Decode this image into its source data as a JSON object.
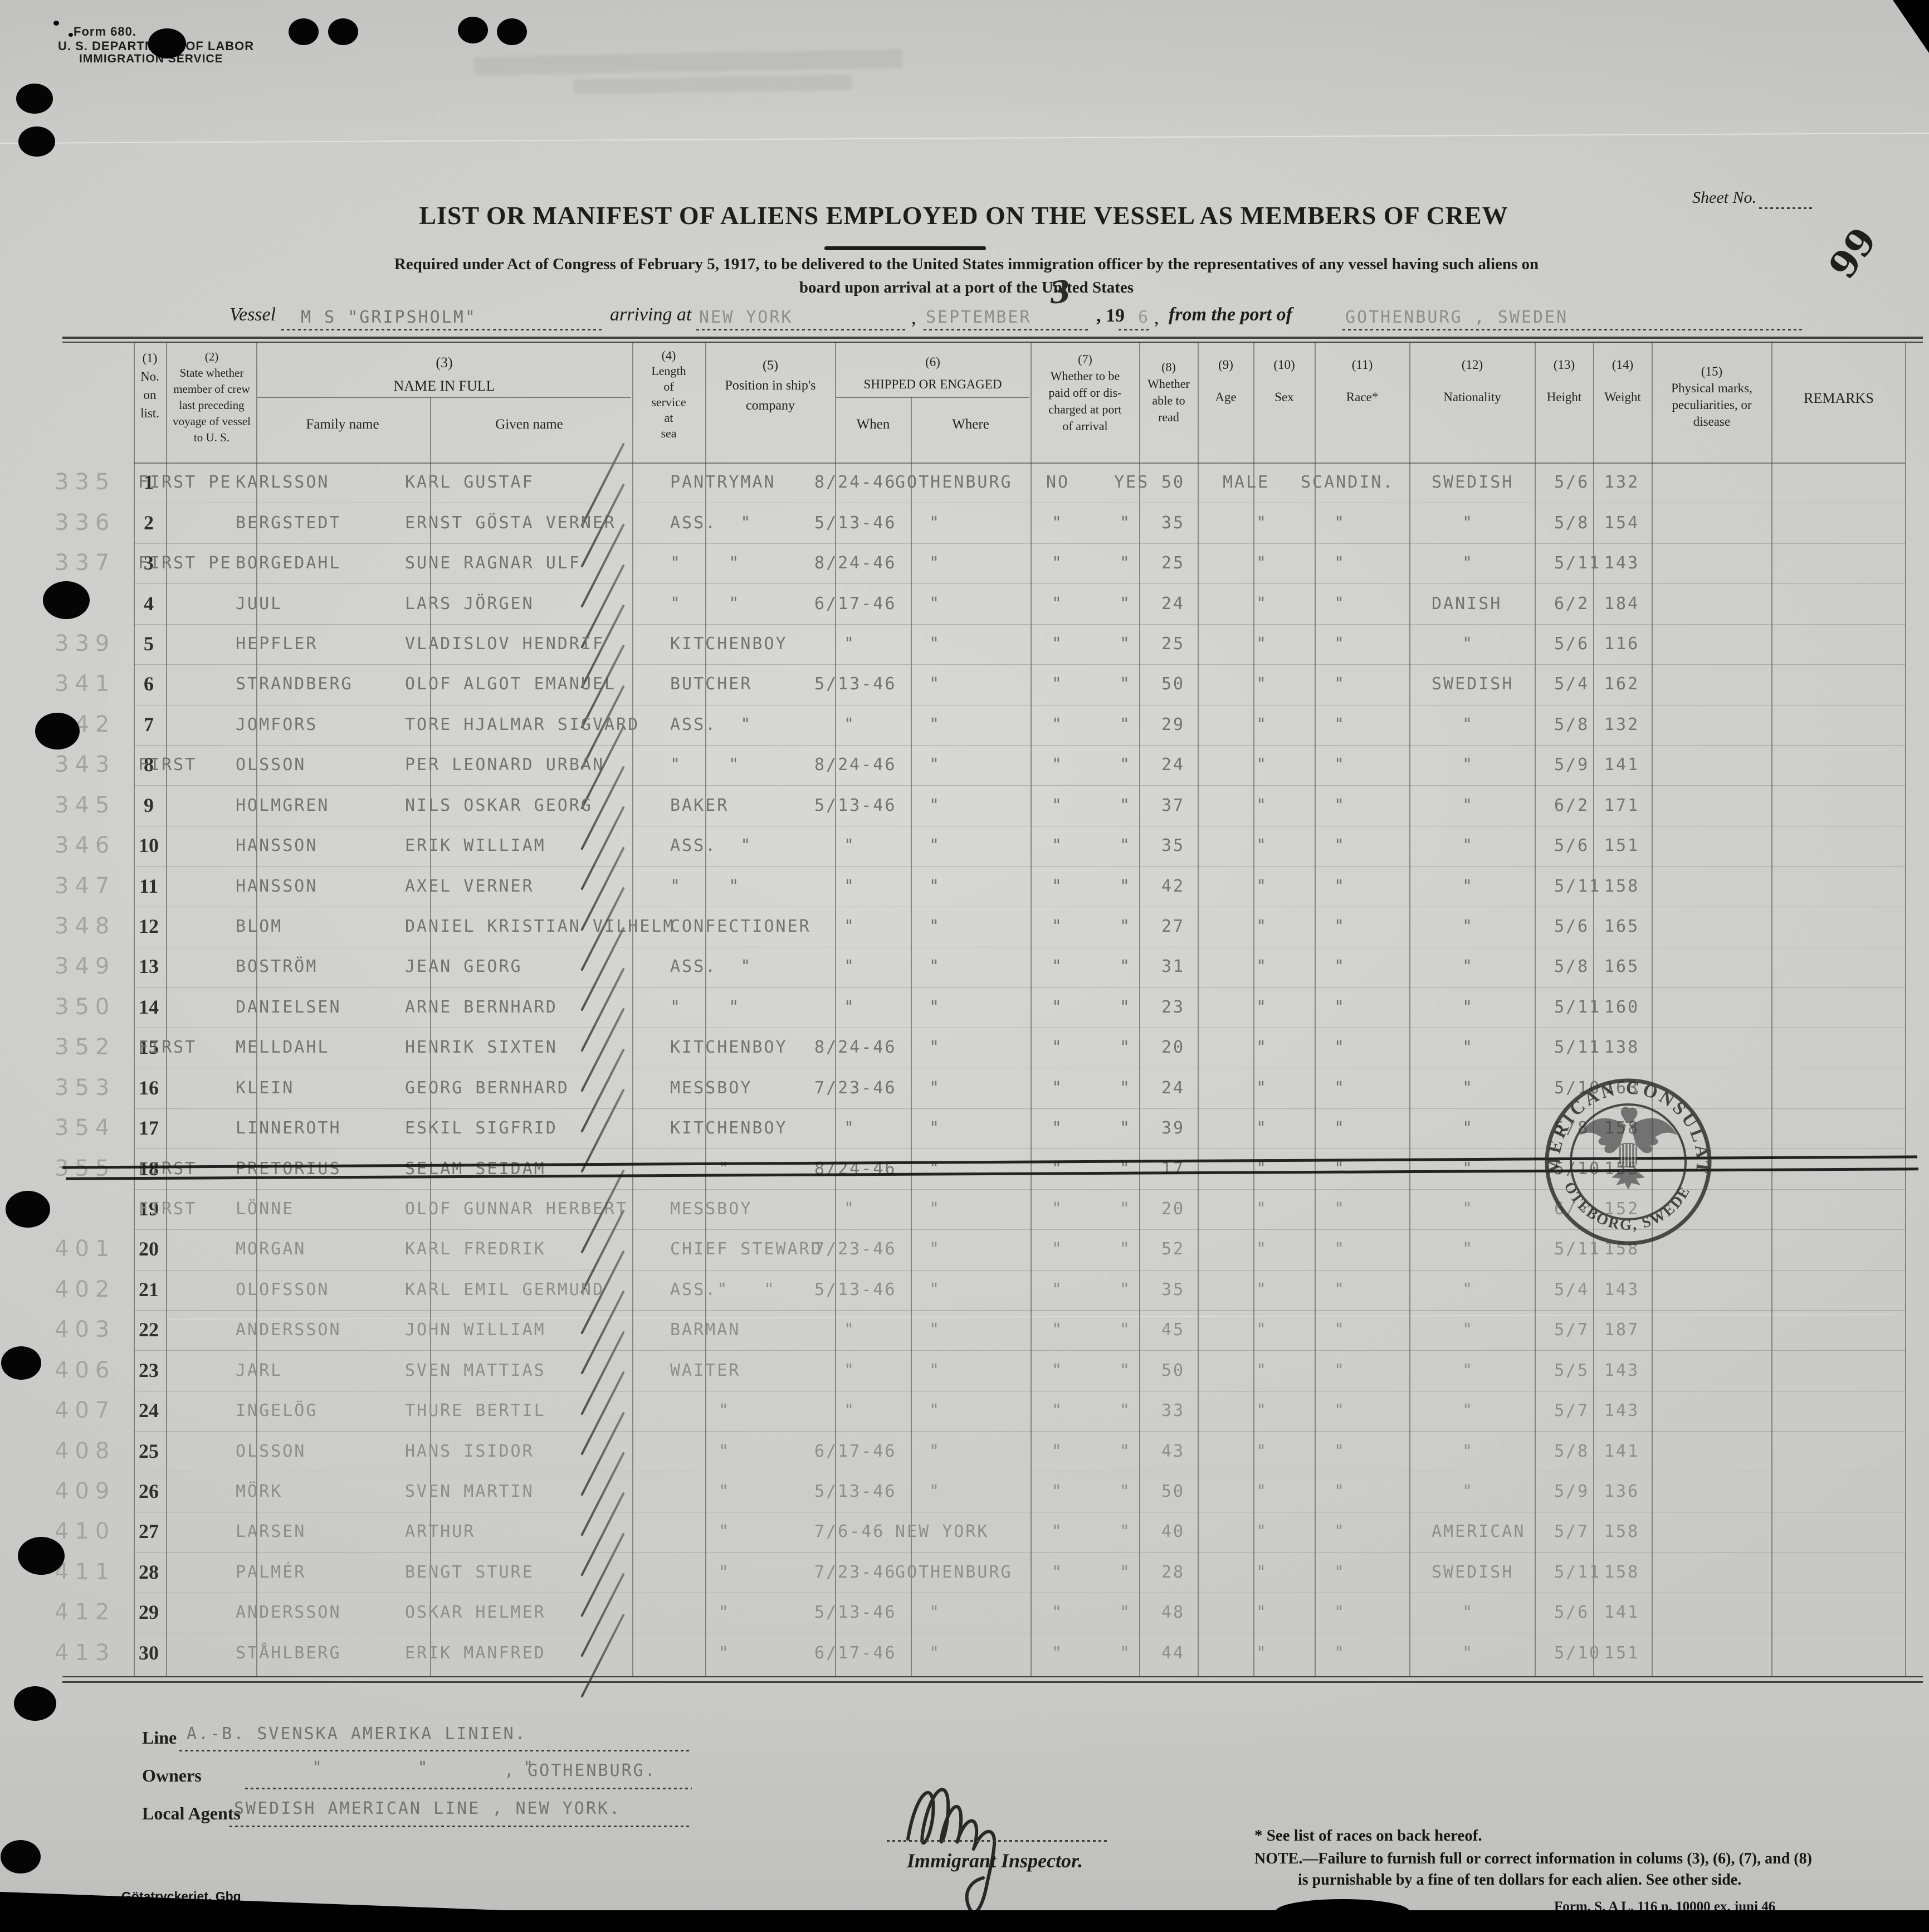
{
  "page_colors": {
    "paper": "#d3d3d1",
    "printed_ink": "#1d1d1d",
    "typed_ink": "#737373",
    "pencil": "#a3a3a3",
    "stamp_ink": "#2b2b2b"
  },
  "header": {
    "form_no": "Form 680.",
    "agency_line1": "U. S. DEPARTMENT OF LABOR",
    "agency_line2": "IMMIGRATION SERVICE",
    "sheet_label": "Sheet No.",
    "sheet_number": "99",
    "title": "LIST OR MANIFEST OF ALIENS EMPLOYED ON THE VESSEL AS MEMBERS OF CREW",
    "subtitle1": "Required under Act of Congress of February 5, 1917, to be delivered to the United States immigration officer by the representatives of any vessel having such aliens on",
    "subtitle2": "board upon arrival at a port of the United States",
    "vessel_label": "Vessel",
    "vessel_name": "M S \"GRIPSHOLM\"",
    "arriving_label": "arriving at",
    "arrival_port": "NEW YORK",
    "arrival_month": "SEPTEMBER",
    "arrival_day": "3",
    "year_printed": ", 19",
    "year_typed": "6",
    "comma": ",",
    "from_label": "from the port of",
    "departure_port": "GOTHENBURG , SWEDEN"
  },
  "table": {
    "header_cols": [
      {
        "id": "c1",
        "lines": [
          "(1)",
          "No.",
          "on",
          "list."
        ]
      },
      {
        "id": "c2",
        "lines": [
          "(2)",
          "State whether",
          "member of crew",
          "last preceding",
          "voyage of vessel",
          "to U. S."
        ]
      },
      {
        "id": "c3",
        "lines": [
          "(3)",
          "NAME IN FULL"
        ]
      },
      {
        "id": "c3a",
        "lines": [
          "Family name"
        ]
      },
      {
        "id": "c3b",
        "lines": [
          "Given name"
        ]
      },
      {
        "id": "c4",
        "lines": [
          "(4)",
          "Length",
          "of",
          "service",
          "at",
          "sea"
        ]
      },
      {
        "id": "c5",
        "lines": [
          "(5)",
          "Position in ship's",
          "company"
        ]
      },
      {
        "id": "c6",
        "lines": [
          "(6)",
          "SHIPPED OR ENGAGED"
        ]
      },
      {
        "id": "c6a",
        "lines": [
          "When"
        ]
      },
      {
        "id": "c6b",
        "lines": [
          "Where"
        ]
      },
      {
        "id": "c7",
        "lines": [
          "(7)",
          "Whether to be",
          "paid off or dis-",
          "charged at port",
          "of arrival"
        ]
      },
      {
        "id": "c8",
        "lines": [
          "(8)",
          "Whether",
          "able to",
          "read"
        ]
      },
      {
        "id": "c9",
        "lines": [
          "(9)",
          "Age"
        ]
      },
      {
        "id": "c10",
        "lines": [
          "(10)",
          "Sex"
        ]
      },
      {
        "id": "c11",
        "lines": [
          "(11)",
          "Race*"
        ]
      },
      {
        "id": "c12",
        "lines": [
          "(12)",
          "Nationality"
        ]
      },
      {
        "id": "c13",
        "lines": [
          "(13)",
          "Height"
        ]
      },
      {
        "id": "c14",
        "lines": [
          "(14)",
          "Weight"
        ]
      },
      {
        "id": "c15",
        "lines": [
          "(15)",
          "Physical marks,",
          "peculiarities, or",
          "disease"
        ]
      },
      {
        "id": "rem",
        "lines": [
          "REMARKS"
        ]
      }
    ],
    "rows": [
      {
        "m": "335",
        "n": "1",
        "p": "FIRST PE",
        "f": "KARLSSON",
        "g": "KARL GUSTAF",
        "pos": "PANTRYMAN",
        "wn": "8/24-46",
        "wh": "GOTHENBURG",
        "pd": "NO",
        "rd": "YES",
        "a": "50",
        "sx": "MALE",
        "rc": "SCANDIN.",
        "nt": "SWEDISH",
        "ht": "5/6",
        "wt": "132"
      },
      {
        "m": "336",
        "n": "2",
        "p": "",
        "f": "BERGSTEDT",
        "g": "ERNST GÖSTA VERNER",
        "pos": "ASS.  \"",
        "wn": "5/13-46",
        "wh": "\"",
        "pd": "\"",
        "rd": "\"",
        "a": "35",
        "sx": "\"",
        "rc": "\"",
        "nt": "\"",
        "ht": "5/8",
        "wt": "154"
      },
      {
        "m": "337",
        "n": "3",
        "p": "FIRST PE",
        "f": "BORGEDAHL",
        "g": "SUNE RAGNAR ULF",
        "pos": "\"    \"",
        "wn": "8/24-46",
        "wh": "\"",
        "pd": "\"",
        "rd": "\"",
        "a": "25",
        "sx": "\"",
        "rc": "\"",
        "nt": "\"",
        "ht": "5/11",
        "wt": "143"
      },
      {
        "m": "",
        "n": "4",
        "p": "",
        "f": "JUUL",
        "g": "LARS JÖRGEN",
        "pos": "\"    \"",
        "wn": "6/17-46",
        "wh": "\"",
        "pd": "\"",
        "rd": "\"",
        "a": "24",
        "sx": "\"",
        "rc": "\"",
        "nt": "DANISH",
        "ht": "6/2",
        "wt": "184"
      },
      {
        "m": "339",
        "n": "5",
        "p": "",
        "f": "HEPFLER",
        "g": "VLADISLOV HENDRIF",
        "pos": "KITCHENBOY",
        "wn": "\"",
        "wh": "\"",
        "pd": "\"",
        "rd": "\"",
        "a": "25",
        "sx": "\"",
        "rc": "\"",
        "nt": "\"",
        "ht": "5/6",
        "wt": "116"
      },
      {
        "m": "341",
        "n": "6",
        "p": "",
        "f": "STRANDBERG",
        "g": "OLOF ALGOT EMANUEL",
        "pos": "BUTCHER",
        "wn": "5/13-46",
        "wh": "\"",
        "pd": "\"",
        "rd": "\"",
        "a": "50",
        "sx": "\"",
        "rc": "\"",
        "nt": "SWEDISH",
        "ht": "5/4",
        "wt": "162"
      },
      {
        "m": "342",
        "n": "7",
        "p": "",
        "f": "JOMFORS",
        "g": "TORE HJALMAR SIGVARD",
        "pos": "ASS.  \"",
        "wn": "\"",
        "wh": "\"",
        "pd": "\"",
        "rd": "\"",
        "a": "29",
        "sx": "\"",
        "rc": "\"",
        "nt": "\"",
        "ht": "5/8",
        "wt": "132"
      },
      {
        "m": "343",
        "n": "8",
        "p": "FIRST",
        "f": "OLSSON",
        "g": "PER LEONARD URBAN",
        "pos": "\"    \"",
        "wn": "8/24-46",
        "wh": "\"",
        "pd": "\"",
        "rd": "\"",
        "a": "24",
        "sx": "\"",
        "rc": "\"",
        "nt": "\"",
        "ht": "5/9",
        "wt": "141"
      },
      {
        "m": "345",
        "n": "9",
        "p": "",
        "f": "HOLMGREN",
        "g": "NILS OSKAR GEORG",
        "pos": "BAKER",
        "wn": "5/13-46",
        "wh": "\"",
        "pd": "\"",
        "rd": "\"",
        "a": "37",
        "sx": "\"",
        "rc": "\"",
        "nt": "\"",
        "ht": "6/2",
        "wt": "171"
      },
      {
        "m": "346",
        "n": "10",
        "p": "",
        "f": "HANSSON",
        "g": "ERIK WILLIAM",
        "pos": "ASS.  \"",
        "wn": "\"",
        "wh": "\"",
        "pd": "\"",
        "rd": "\"",
        "a": "35",
        "sx": "\"",
        "rc": "\"",
        "nt": "\"",
        "ht": "5/6",
        "wt": "151"
      },
      {
        "m": "347",
        "n": "11",
        "p": "",
        "f": "HANSSON",
        "g": "AXEL VERNER",
        "pos": "\"    \"",
        "wn": "\"",
        "wh": "\"",
        "pd": "\"",
        "rd": "\"",
        "a": "42",
        "sx": "\"",
        "rc": "\"",
        "nt": "\"",
        "ht": "5/11",
        "wt": "158"
      },
      {
        "m": "348",
        "n": "12",
        "p": "",
        "f": "BLOM",
        "g": "DANIEL KRISTIAN VILHELM",
        "pos": "CONFECTIONER",
        "wn": "\"",
        "wh": "\"",
        "pd": "\"",
        "rd": "\"",
        "a": "27",
        "sx": "\"",
        "rc": "\"",
        "nt": "\"",
        "ht": "5/6",
        "wt": "165"
      },
      {
        "m": "349",
        "n": "13",
        "p": "",
        "f": "BOSTRÖM",
        "g": "JEAN GEORG",
        "pos": "ASS.  \"",
        "wn": "\"",
        "wh": "\"",
        "pd": "\"",
        "rd": "\"",
        "a": "31",
        "sx": "\"",
        "rc": "\"",
        "nt": "\"",
        "ht": "5/8",
        "wt": "165"
      },
      {
        "m": "350",
        "n": "14",
        "p": "",
        "f": "DANIELSEN",
        "g": "ARNE BERNHARD",
        "pos": "\"    \"",
        "wn": "\"",
        "wh": "\"",
        "pd": "\"",
        "rd": "\"",
        "a": "23",
        "sx": "\"",
        "rc": "\"",
        "nt": "\"",
        "ht": "5/11",
        "wt": "160"
      },
      {
        "m": "352",
        "n": "15",
        "p": "FIRST",
        "f": "MELLDAHL",
        "g": "HENRIK SIXTEN",
        "pos": "KITCHENBOY",
        "wn": "8/24-46",
        "wh": "\"",
        "pd": "\"",
        "rd": "\"",
        "a": "20",
        "sx": "\"",
        "rc": "\"",
        "nt": "\"",
        "ht": "5/11",
        "wt": "138"
      },
      {
        "m": "353",
        "n": "16",
        "p": "",
        "f": "KLEIN",
        "g": "GEORG BERNHARD",
        "pos": "MESSBOY",
        "wn": "7/23-46",
        "wh": "\"",
        "pd": "\"",
        "rd": "\"",
        "a": "24",
        "sx": "\"",
        "rc": "\"",
        "nt": "\"",
        "ht": "5/10",
        "wt": "163"
      },
      {
        "m": "354",
        "n": "17",
        "p": "",
        "f": "LINNEROTH",
        "g": "ESKIL SIGFRID",
        "pos": "KITCHENBOY",
        "wn": "\"",
        "wh": "\"",
        "pd": "\"",
        "rd": "\"",
        "a": "39",
        "sx": "\"",
        "rc": "\"",
        "nt": "\"",
        "ht": "5/8",
        "wt": "158"
      },
      {
        "m": "355",
        "n": "18",
        "p": "FIRST",
        "f": "PRETORIUS",
        "g": "SELAM SEIDAM",
        "pos": "\"",
        "wn": "8/24-46",
        "wh": "\"",
        "pd": "\"",
        "rd": "\"",
        "a": "17",
        "sx": "\"",
        "rc": "\"",
        "nt": "\"",
        "ht": "5/10",
        "wt": "155",
        "s": true
      },
      {
        "m": "",
        "n": "19",
        "p": "FIRST",
        "f": "LÖNNE",
        "g": "OLOF GUNNAR HERBERT",
        "pos": "MESSBOY",
        "wn": "\"",
        "wh": "\"",
        "pd": "\"",
        "rd": "\"",
        "a": "20",
        "sx": "\"",
        "rc": "\"",
        "nt": "\"",
        "ht": "6/-",
        "wt": "152"
      },
      {
        "m": "401",
        "n": "20",
        "p": "",
        "f": "MORGAN",
        "g": "KARL FREDRIK",
        "pos": "CHIEF STEWARD",
        "wn": "7/23-46",
        "wh": "\"",
        "pd": "\"",
        "rd": "\"",
        "a": "52",
        "sx": "\"",
        "rc": "\"",
        "nt": "\"",
        "ht": "5/11",
        "wt": "158"
      },
      {
        "m": "402",
        "n": "21",
        "p": "",
        "f": "OLOFSSON",
        "g": "KARL EMIL GERMUND",
        "pos": "ASS.\"   \"",
        "wn": "5/13-46",
        "wh": "\"",
        "pd": "\"",
        "rd": "\"",
        "a": "35",
        "sx": "\"",
        "rc": "\"",
        "nt": "\"",
        "ht": "5/4",
        "wt": "143"
      },
      {
        "m": "403",
        "n": "22",
        "p": "",
        "f": "ANDERSSON",
        "g": "JOHN WILLIAM",
        "pos": "BARMAN",
        "wn": "\"",
        "wh": "\"",
        "pd": "\"",
        "rd": "\"",
        "a": "45",
        "sx": "\"",
        "rc": "\"",
        "nt": "\"",
        "ht": "5/7",
        "wt": "187"
      },
      {
        "m": "406",
        "n": "23",
        "p": "",
        "f": "JARL",
        "g": "SVEN MATTIAS",
        "pos": "WAITER",
        "wn": "\"",
        "wh": "\"",
        "pd": "\"",
        "rd": "\"",
        "a": "50",
        "sx": "\"",
        "rc": "\"",
        "nt": "\"",
        "ht": "5/5",
        "wt": "143"
      },
      {
        "m": "407",
        "n": "24",
        "p": "",
        "f": "INGELÖG",
        "g": "THURE BERTIL",
        "pos": "\"",
        "wn": "\"",
        "wh": "\"",
        "pd": "\"",
        "rd": "\"",
        "a": "33",
        "sx": "\"",
        "rc": "\"",
        "nt": "\"",
        "ht": "5/7",
        "wt": "143"
      },
      {
        "m": "408",
        "n": "25",
        "p": "",
        "f": "OLSSON",
        "g": "HANS ISIDOR",
        "pos": "\"",
        "wn": "6/17-46",
        "wh": "\"",
        "pd": "\"",
        "rd": "\"",
        "a": "43",
        "sx": "\"",
        "rc": "\"",
        "nt": "\"",
        "ht": "5/8",
        "wt": "141"
      },
      {
        "m": "409",
        "n": "26",
        "p": "",
        "f": "MÖRK",
        "g": "SVEN MARTIN",
        "pos": "\"",
        "wn": "5/13-46",
        "wh": "\"",
        "pd": "\"",
        "rd": "\"",
        "a": "50",
        "sx": "\"",
        "rc": "\"",
        "nt": "\"",
        "ht": "5/9",
        "wt": "136"
      },
      {
        "m": "410",
        "n": "27",
        "p": "",
        "f": "LARSEN",
        "g": "ARTHUR",
        "pos": "\"",
        "wn": "7/6-46",
        "wh": "NEW YORK",
        "pd": "\"",
        "rd": "\"",
        "a": "40",
        "sx": "\"",
        "rc": "\"",
        "nt": "AMERICAN",
        "ht": "5/7",
        "wt": "158"
      },
      {
        "m": "411",
        "n": "28",
        "p": "",
        "f": "PALMÉR",
        "g": "BENGT STURE",
        "pos": "\"",
        "wn": "7/23-46",
        "wh": "GOTHENBURG",
        "pd": "\"",
        "rd": "\"",
        "a": "28",
        "sx": "\"",
        "rc": "\"",
        "nt": "SWEDISH",
        "ht": "5/11",
        "wt": "158"
      },
      {
        "m": "412",
        "n": "29",
        "p": "",
        "f": "ANDERSSON",
        "g": "OSKAR HELMER",
        "pos": "\"",
        "wn": "5/13-46",
        "wh": "\"",
        "pd": "\"",
        "rd": "\"",
        "a": "48",
        "sx": "\"",
        "rc": "\"",
        "nt": "\"",
        "ht": "5/6",
        "wt": "141"
      },
      {
        "m": "413",
        "n": "30",
        "p": "",
        "f": "STÅHLBERG",
        "g": "ERIK MANFRED",
        "pos": "\"",
        "wn": "6/17-46",
        "wh": "\"",
        "pd": "\"",
        "rd": "\"",
        "a": "44",
        "sx": "\"",
        "rc": "\"",
        "nt": "\"",
        "ht": "5/10",
        "wt": "151"
      }
    ]
  },
  "footer": {
    "line_label": "Line",
    "line_value": "A.-B. SVENSKA AMERIKA LINIEN.",
    "owners_label": "Owners",
    "owners_dittos": "\"        \"        \"",
    "owners_value": ", GOTHENBURG.",
    "agents_label": "Local  Agents",
    "agents_value": "SWEDISH AMERICAN LINE , NEW YORK.",
    "inspector_label": "Immigrant Inspector.",
    "races_note": "* See list of races on back hereof.",
    "note_line1": "NOTE.—Failure to furnish full or correct information in colums (3), (6), (7), and (8)",
    "note_line2": "is purnishable by a fine of ten dollars for each alien.  See other side.",
    "form_ref": "Form. S. A L. 116 n. 10000 ex. juni 46",
    "printer_mark": "Götatryckeriet, Gbg"
  },
  "stamp": {
    "top_text": "AMERICAN CONSULATE",
    "bottom_text": "GOTEBORG, SWEDEN."
  }
}
